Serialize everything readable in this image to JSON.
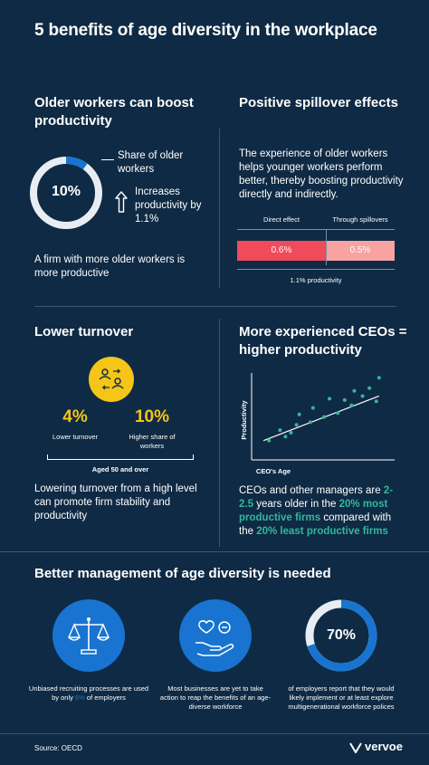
{
  "title": "5 benefits of age diversity in the workplace",
  "s1": {
    "heading": "Older workers can boost productivity",
    "donut_value": "10%",
    "donut_fraction": 0.1,
    "share_label": "Share of older workers",
    "increase_label": "Increases productivity by 1.1%",
    "caption": "A firm with more older workers is more productive"
  },
  "s2": {
    "heading": "Positive spillover effects",
    "body": "The experience of older workers helps younger workers perform better, thereby boosting productivity directly and indirectly.",
    "direct_label": "Direct effect",
    "spill_label": "Through spillovers",
    "direct_value": "0.6%",
    "spill_value": "0.5%",
    "total_label": "1.1% productivity"
  },
  "s3": {
    "heading": "Lower turnover",
    "stat1_value": "4%",
    "stat1_label": "Lower turnover",
    "stat2_value": "10%",
    "stat2_label": "Higher share of workers",
    "age_label": "Aged 50 and over",
    "caption": "Lowering turnover from a high level can promote firm stability and productivity"
  },
  "s4": {
    "heading": "More experienced CEOs = higher productivity",
    "ylabel": "Productivity",
    "xlabel": "CEO's Age",
    "caption_pre": "CEOs and other managers are",
    "caption_hl1": "2-2.5",
    "caption_mid1": "years older in the",
    "caption_hl2": "20% most productive firms",
    "caption_mid2": "compared with the",
    "caption_hl3": "20% least productive firms"
  },
  "s5": {
    "heading": "Better management of age diversity is needed",
    "item1_pre": "Unbiased recruiting processes are used by only",
    "item1_hl": "6%",
    "item1_post": "of employers",
    "item2": "Most businesses are yet to take action to reap the benefits of an age-diverse workforce",
    "item3_value": "70%",
    "item3_fraction": 0.7,
    "item3": "of employers report that they would likely implement or at least explore multigenerational workforce polices"
  },
  "footer": {
    "source": "Source: OECD",
    "brand": "vervoe"
  },
  "colors": {
    "background": "#0f2a44",
    "accent_blue": "#1874d0",
    "donut_track": "#e8edf3",
    "bar_direct": "#ef4b5a",
    "bar_spill": "#f8a3a1",
    "yellow": "#f5c518",
    "green": "#33b79a"
  },
  "chart_data": {
    "type": "scatter",
    "xlabel": "CEO's Age",
    "ylabel": "Productivity",
    "points": [
      [
        1,
        1.2
      ],
      [
        1.8,
        2
      ],
      [
        2.2,
        1.5
      ],
      [
        2.6,
        1.8
      ],
      [
        3,
        2.4
      ],
      [
        3.2,
        3.2
      ],
      [
        4,
        2.6
      ],
      [
        4.2,
        3.7
      ],
      [
        5,
        3
      ],
      [
        5.4,
        4.4
      ],
      [
        6,
        3.3
      ],
      [
        6.5,
        4.3
      ],
      [
        7,
        3.9
      ],
      [
        7.2,
        5
      ],
      [
        7.8,
        4.6
      ],
      [
        8.3,
        5.2
      ],
      [
        8.8,
        4.2
      ],
      [
        9,
        6
      ]
    ],
    "trend": [
      [
        0.6,
        1.2
      ],
      [
        9,
        4.6
      ]
    ],
    "xlim": [
      0,
      10
    ],
    "ylim": [
      0,
      6.5
    ]
  }
}
